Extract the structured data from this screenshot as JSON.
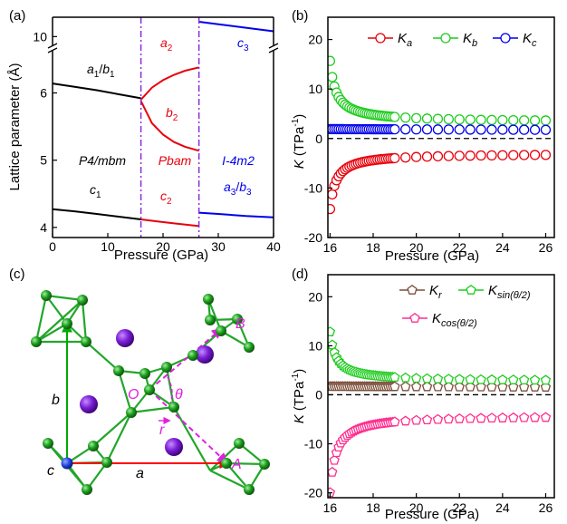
{
  "chart_data": [
    {
      "panel": "(a)",
      "type": "line",
      "xlabel": "Pressure (GPa)",
      "ylabel": "Lattice parameter (Å)",
      "xlim": [
        0,
        40
      ],
      "ylim_lower": [
        3.85,
        6.6
      ],
      "ylim_upper": [
        9.7,
        10.55
      ],
      "axis_break": true,
      "xticks": [
        "0",
        "10",
        "20",
        "30",
        "40"
      ],
      "yticks": [
        "4",
        "5",
        "6",
        "10"
      ],
      "phase_boundaries": [
        16,
        26.5
      ],
      "phase_labels": [
        "P4/mbm",
        "Pbam",
        "I-4m2"
      ],
      "series": [
        {
          "name": "a1/b1",
          "color": "#000000",
          "x": [
            0,
            4,
            8,
            12,
            16
          ],
          "y": [
            6.14,
            6.09,
            6.04,
            5.98,
            5.92
          ]
        },
        {
          "name": "c1",
          "color": "#000000",
          "x": [
            0,
            4,
            8,
            12,
            16
          ],
          "y": [
            4.27,
            4.24,
            4.2,
            4.16,
            4.12
          ]
        },
        {
          "name": "a2",
          "color": "#e8000b",
          "x": [
            16,
            18,
            20,
            22,
            24,
            26.5
          ],
          "y": [
            5.9,
            6.08,
            6.19,
            6.27,
            6.33,
            6.38
          ]
        },
        {
          "name": "b2",
          "color": "#e8000b",
          "x": [
            16,
            18,
            20,
            22,
            24,
            26.5
          ],
          "y": [
            5.88,
            5.55,
            5.38,
            5.27,
            5.2,
            5.14
          ]
        },
        {
          "name": "c2",
          "color": "#e8000b",
          "x": [
            16,
            19,
            22,
            26.5
          ],
          "y": [
            4.12,
            4.09,
            4.06,
            4.02
          ]
        },
        {
          "name": "c3",
          "color": "#0000ee",
          "x": [
            26.5,
            30,
            35,
            40
          ],
          "y": [
            10.42,
            10.35,
            10.25,
            10.15
          ]
        },
        {
          "name": "a3/b3",
          "color": "#0000ee",
          "x": [
            26.5,
            30,
            35,
            40
          ],
          "y": [
            4.22,
            4.2,
            4.17,
            4.15
          ]
        }
      ]
    },
    {
      "panel": "(b)",
      "type": "scatter",
      "xlabel": "Pressure (GPa)",
      "ylabel": "K (TPa-1)",
      "xlim": [
        15.9,
        26.4
      ],
      "ylim": [
        -20,
        24.5
      ],
      "xticks": [
        "16",
        "18",
        "20",
        "22",
        "24",
        "26"
      ],
      "yticks": [
        "-20",
        "-10",
        "0",
        "10",
        "20"
      ],
      "legend_placement": "top",
      "zero_line": "dashed",
      "series": [
        {
          "name": "Ka",
          "color": "#e8000b",
          "marker": "circle",
          "A": -3.0,
          "B": 0.21,
          "p": 1.0,
          "clamp": 24
        },
        {
          "name": "Kb",
          "color": "#1fcc1f",
          "marker": "circle",
          "A": 3.3,
          "B": 0.24,
          "p": 1.0,
          "clamp": 24
        },
        {
          "name": "Kc",
          "color": "#0000ee",
          "marker": "circle",
          "A": 1.9,
          "B": 0,
          "p": 1.0,
          "clamp": 24
        }
      ]
    },
    {
      "panel": "(d)",
      "type": "scatter",
      "xlabel": "Pressure (GPa)",
      "ylabel": "K (TPa-1)",
      "xlim": [
        15.9,
        26.4
      ],
      "ylim": [
        -21,
        24.5
      ],
      "xticks": [
        "16",
        "18",
        "20",
        "22",
        "24",
        "26"
      ],
      "yticks": [
        "-20",
        "-10",
        "0",
        "10",
        "20"
      ],
      "legend_placement": "top-right",
      "zero_line": "dashed",
      "series": [
        {
          "name": "Kr",
          "color": "#7b4e3a",
          "marker": "pentagon",
          "A": 1.7,
          "B": 0,
          "p": 1.0,
          "clamp": 24
        },
        {
          "name": "Ksin(θ/2)",
          "color": "#1fcc1f",
          "marker": "pentagon",
          "A": 2.7,
          "B": 0.23,
          "p": 1.0,
          "clamp": 24
        },
        {
          "name": "Kcos(θ/2)",
          "color": "#ff2e8f",
          "marker": "pentagon",
          "A": -4.2,
          "B": 0.21,
          "p": 1.0,
          "clamp": 24
        }
      ]
    }
  ],
  "panel_labels": [
    "(a)",
    "(b)",
    "(c)",
    "(d)"
  ],
  "structure": {
    "labels": {
      "a": "a",
      "b": "b",
      "c": "c",
      "O": "O",
      "A": "A",
      "B": "B",
      "theta": "θ",
      "r": "r"
    },
    "colors": {
      "bond": "#22a62a",
      "atom": "#1e9e1e",
      "big_atom": "#7a1fd6",
      "arrow_a": "#ff0000",
      "arrow_b": "#00aa00",
      "vector": "#e020e0"
    }
  }
}
